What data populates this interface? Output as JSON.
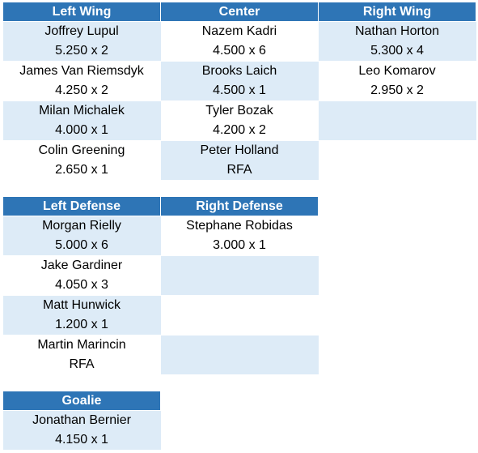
{
  "forwards": {
    "headers": [
      "Left Wing",
      "Center",
      "Right Wing"
    ],
    "rows": [
      [
        {
          "name": "Joffrey Lupul",
          "contract": "5.250 x 2"
        },
        {
          "name": "Nazem Kadri",
          "contract": "4.500 x 6"
        },
        {
          "name": "Nathan Horton",
          "contract": "5.300 x 4"
        }
      ],
      [
        {
          "name": "James Van Riemsdyk",
          "contract": "4.250 x 2"
        },
        {
          "name": "Brooks Laich",
          "contract": "4.500 x 1"
        },
        {
          "name": "Leo Komarov",
          "contract": "2.950 x 2"
        }
      ],
      [
        {
          "name": "Milan Michalek",
          "contract": "4.000 x 1"
        },
        {
          "name": "Tyler Bozak",
          "contract": "4.200 x 2"
        },
        {
          "name": "",
          "contract": ""
        }
      ],
      [
        {
          "name": "Colin Greening",
          "contract": "2.650 x 1"
        },
        {
          "name": "Peter Holland",
          "contract": "RFA"
        },
        {
          "name": "",
          "contract": ""
        }
      ]
    ]
  },
  "defense": {
    "headers": [
      "Left Defense",
      "Right Defense"
    ],
    "rows": [
      [
        {
          "name": "Morgan Rielly",
          "contract": "5.000 x 6"
        },
        {
          "name": "Stephane Robidas",
          "contract": "3.000 x 1"
        }
      ],
      [
        {
          "name": "Jake Gardiner",
          "contract": "4.050 x 3"
        },
        {
          "name": "",
          "contract": ""
        }
      ],
      [
        {
          "name": "Matt Hunwick",
          "contract": "1.200 x 1"
        },
        {
          "name": "",
          "contract": ""
        }
      ],
      [
        {
          "name": "Martin Marincin",
          "contract": "RFA"
        },
        {
          "name": "",
          "contract": ""
        }
      ]
    ]
  },
  "goalie": {
    "headers": [
      "Goalie"
    ],
    "rows": [
      [
        {
          "name": "Jonathan Bernier",
          "contract": "4.150 x 1"
        }
      ]
    ]
  },
  "colors": {
    "header_bg": "#2e75b6",
    "header_text": "#ffffff",
    "shaded_cell": "#ddebf7",
    "plain_cell": "#ffffff"
  }
}
